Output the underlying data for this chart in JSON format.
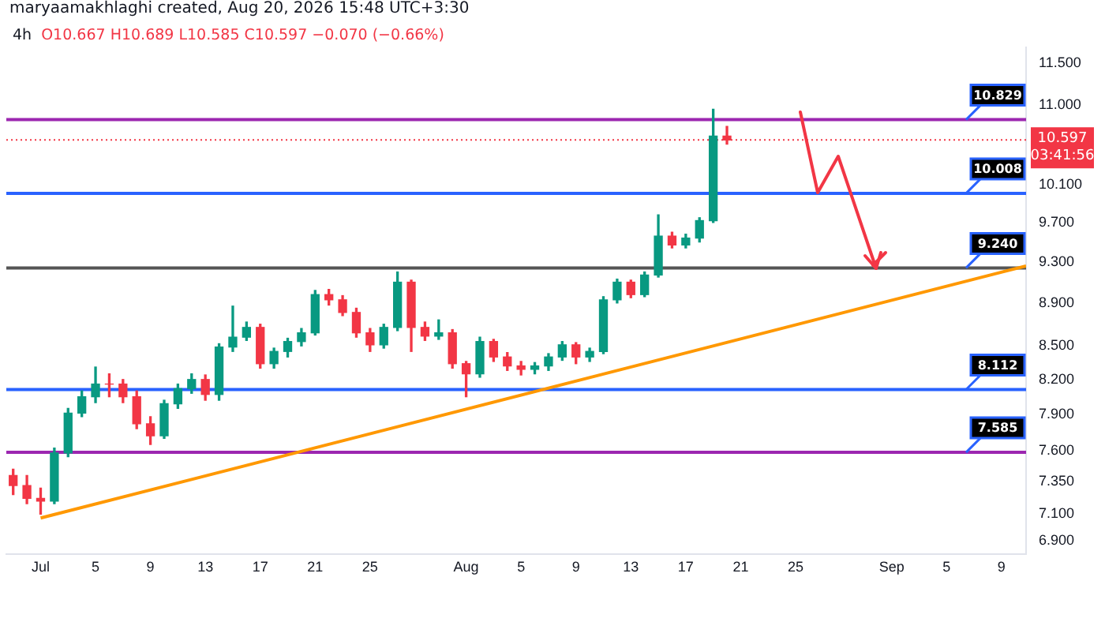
{
  "chart_data": {
    "type": "candlestick",
    "title": "4h",
    "subtitle": "O10.667 H10.689 L10.585 C10.597 −0.070 (−0.66%)",
    "annotations": [
      "maryaamakhlaghi created, Aug 20, 2026 15:48 UTC+3:30",
      "03:41:56"
    ],
    "x": [
      "2026-06-29",
      "2026-06-30",
      "2026-07-01",
      "2026-07-02",
      "2026-07-03",
      "2026-07-04",
      "2026-07-05",
      "2026-07-06",
      "2026-07-07",
      "2026-07-08",
      "2026-07-09",
      "2026-07-10",
      "2026-07-11",
      "2026-07-12",
      "2026-07-13",
      "2026-07-14",
      "2026-07-15",
      "2026-07-16",
      "2026-07-17",
      "2026-07-18",
      "2026-07-19",
      "2026-07-20",
      "2026-07-21",
      "2026-07-22",
      "2026-07-23",
      "2026-07-24",
      "2026-07-25",
      "2026-07-26",
      "2026-07-27",
      "2026-07-28",
      "2026-07-29",
      "2026-07-30",
      "2026-07-31",
      "2026-08-01",
      "2026-08-02",
      "2026-08-03",
      "2026-08-04",
      "2026-08-05",
      "2026-08-06",
      "2026-08-07",
      "2026-08-08",
      "2026-08-09",
      "2026-08-10",
      "2026-08-11",
      "2026-08-12",
      "2026-08-13",
      "2026-08-14",
      "2026-08-15",
      "2026-08-16",
      "2026-08-17",
      "2026-08-18",
      "2026-08-19",
      "2026-08-20"
    ],
    "ohlc": [
      [
        7.4,
        7.45,
        7.25,
        7.32
      ],
      [
        7.32,
        7.4,
        7.18,
        7.22
      ],
      [
        7.22,
        7.3,
        7.1,
        7.2
      ],
      [
        7.2,
        7.62,
        7.18,
        7.58
      ],
      [
        7.58,
        7.95,
        7.55,
        7.91
      ],
      [
        7.91,
        8.1,
        7.88,
        8.05
      ],
      [
        8.05,
        8.31,
        8.0,
        8.16
      ],
      [
        8.16,
        8.25,
        8.05,
        8.16
      ],
      [
        8.16,
        8.2,
        8.0,
        8.05
      ],
      [
        8.05,
        8.1,
        7.78,
        7.82
      ],
      [
        7.82,
        7.88,
        7.65,
        7.72
      ],
      [
        7.72,
        8.02,
        7.7,
        7.99
      ],
      [
        7.99,
        8.16,
        7.95,
        8.12
      ],
      [
        8.12,
        8.25,
        8.08,
        8.2
      ],
      [
        8.2,
        8.24,
        8.02,
        8.07
      ],
      [
        8.07,
        8.52,
        8.02,
        8.49
      ],
      [
        8.49,
        8.87,
        8.45,
        8.58
      ],
      [
        8.58,
        8.72,
        8.55,
        8.67
      ],
      [
        8.67,
        8.7,
        8.3,
        8.34
      ],
      [
        8.34,
        8.48,
        8.3,
        8.45
      ],
      [
        8.45,
        8.57,
        8.4,
        8.54
      ],
      [
        8.54,
        8.66,
        8.5,
        8.62
      ],
      [
        8.62,
        9.02,
        8.6,
        8.98
      ],
      [
        8.98,
        9.03,
        8.88,
        8.93
      ],
      [
        8.93,
        8.97,
        8.78,
        8.81
      ],
      [
        8.81,
        8.85,
        8.58,
        8.62
      ],
      [
        8.62,
        8.66,
        8.45,
        8.51
      ],
      [
        8.51,
        8.7,
        8.48,
        8.67
      ],
      [
        8.67,
        9.2,
        8.64,
        9.1
      ],
      [
        9.1,
        9.12,
        8.45,
        8.67
      ],
      [
        8.67,
        8.72,
        8.55,
        8.59
      ],
      [
        8.59,
        8.74,
        8.56,
        8.62
      ],
      [
        8.62,
        8.65,
        8.3,
        8.34
      ],
      [
        8.34,
        8.36,
        8.05,
        8.25
      ],
      [
        8.25,
        8.58,
        8.22,
        8.54
      ],
      [
        8.54,
        8.56,
        8.36,
        8.4
      ],
      [
        8.4,
        8.44,
        8.28,
        8.32
      ],
      [
        8.32,
        8.36,
        8.24,
        8.29
      ],
      [
        8.29,
        8.35,
        8.25,
        8.32
      ],
      [
        8.32,
        8.43,
        8.28,
        8.4
      ],
      [
        8.4,
        8.54,
        8.37,
        8.51
      ],
      [
        8.51,
        8.53,
        8.34,
        8.4
      ],
      [
        8.4,
        8.48,
        8.36,
        8.45
      ],
      [
        8.45,
        8.96,
        8.43,
        8.93
      ],
      [
        8.93,
        9.13,
        8.9,
        9.1
      ],
      [
        9.1,
        9.12,
        8.95,
        8.98
      ],
      [
        8.98,
        9.2,
        8.96,
        9.17
      ],
      [
        9.17,
        9.78,
        9.15,
        9.56
      ],
      [
        9.56,
        9.6,
        9.44,
        9.47
      ],
      [
        9.47,
        9.58,
        9.44,
        9.54
      ],
      [
        9.54,
        9.75,
        9.5,
        9.72
      ],
      [
        9.72,
        10.95,
        9.7,
        10.64
      ],
      [
        10.64,
        10.75,
        10.55,
        10.597
      ]
    ],
    "colors": [
      "#f23645",
      "#f23645",
      "#f23645",
      "#089981",
      "#089981",
      "#089981",
      "#089981",
      "#f23645",
      "#f23645",
      "#f23645",
      "#f23645",
      "#089981",
      "#089981",
      "#089981",
      "#f23645",
      "#089981",
      "#089981",
      "#089981",
      "#f23645",
      "#089981",
      "#089981",
      "#089981",
      "#089981",
      "#f23645",
      "#f23645",
      "#f23645",
      "#f23645",
      "#089981",
      "#089981",
      "#f23645",
      "#f23645",
      "#089981",
      "#f23645",
      "#f23645",
      "#089981",
      "#f23645",
      "#f23645",
      "#f23645",
      "#089981",
      "#089981",
      "#089981",
      "#f23645",
      "#089981",
      "#089981",
      "#089981",
      "#f23645",
      "#089981",
      "#089981",
      "#f23645",
      "#089981",
      "#089981",
      "#089981",
      "#f23645"
    ],
    "series": [
      {
        "type": "line",
        "x": [
          "2026-07-01",
          "2026-09-10T19:00"
        ],
        "values": [
          7.07,
          9.26
        ],
        "color": "#ff9800"
      }
    ],
    "log": true,
    "xlim": [
      "2026-06-28T12:00",
      "2026-09-10T19:00"
    ],
    "xticks": [
      {
        "value": "2026-07-01",
        "label": "Jul"
      },
      {
        "value": "2026-07-05",
        "label": "5"
      },
      {
        "value": "2026-07-09",
        "label": "9"
      },
      {
        "value": "2026-07-13",
        "label": "13"
      },
      {
        "value": "2026-07-17",
        "label": "17"
      },
      {
        "value": "2026-07-21",
        "label": "21"
      },
      {
        "value": "2026-07-25",
        "label": "25"
      },
      {
        "value": "2026-08-01",
        "label": "Aug"
      },
      {
        "value": "2026-08-05",
        "label": "5"
      },
      {
        "value": "2026-08-09",
        "label": "9"
      },
      {
        "value": "2026-08-13",
        "label": "13"
      },
      {
        "value": "2026-08-17",
        "label": "17"
      },
      {
        "value": "2026-08-21",
        "label": "21"
      },
      {
        "value": "2026-08-25",
        "label": "25"
      },
      {
        "value": "2026-09-01",
        "label": "Sep"
      },
      {
        "value": "2026-09-05",
        "label": "5"
      },
      {
        "value": "2026-09-09",
        "label": "9"
      }
    ],
    "ylim": [
      6.8,
      11.7
    ],
    "yticks": [
      {
        "value": 6.9,
        "label": "6.900"
      },
      {
        "value": 7.1,
        "label": "7.100"
      },
      {
        "value": 7.35,
        "label": "7.350"
      },
      {
        "value": 7.6,
        "label": "7.600"
      },
      {
        "value": 7.9,
        "label": "7.900"
      },
      {
        "value": 8.2,
        "label": "8.200"
      },
      {
        "value": 8.5,
        "label": "8.500"
      },
      {
        "value": 8.9,
        "label": "8.900"
      },
      {
        "value": 9.3,
        "label": "9.300"
      },
      {
        "value": 9.7,
        "label": "9.700"
      },
      {
        "value": 10.1,
        "label": "10.100"
      },
      {
        "value": 11,
        "label": "11.000"
      },
      {
        "value": 11.5,
        "label": "11.500"
      }
    ],
    "ref_lines": [
      {
        "axis": "y",
        "value": 10.829,
        "label": "10.829",
        "color": "#9c27b0"
      },
      {
        "axis": "y",
        "value": 10.008,
        "label": "10.008",
        "color": "#2962ff"
      },
      {
        "axis": "y",
        "value": 9.24,
        "label": "9.240",
        "color": "#555555"
      },
      {
        "axis": "y",
        "value": 8.112,
        "label": "8.112",
        "color": "#2962ff"
      },
      {
        "axis": "y",
        "value": 7.585,
        "label": "7.585",
        "color": "#9c27b0"
      },
      {
        "axis": "y",
        "value": 10.597,
        "label": "10.597",
        "color": "#f23645",
        "line_style": "dotted"
      }
    ]
  }
}
